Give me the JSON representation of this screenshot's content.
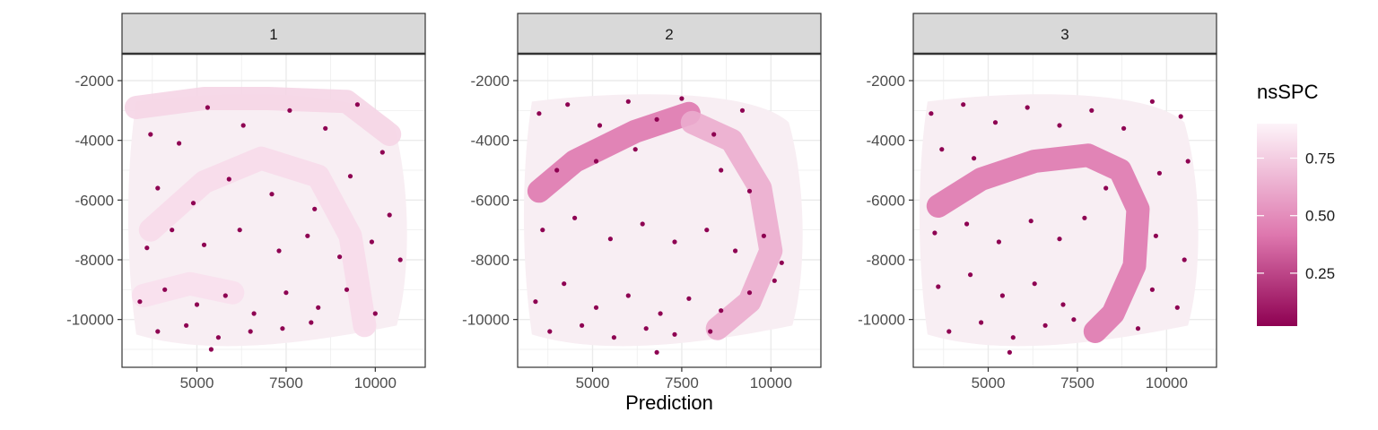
{
  "chart_data": {
    "type": "scatter",
    "title": "",
    "xlabel": "Prediction",
    "ylabel": "",
    "xlim": [
      2900,
      11400
    ],
    "ylim": [
      -11600,
      -1100
    ],
    "x_ticks": [
      5000,
      7500,
      10000
    ],
    "y_ticks": [
      -2000,
      -4000,
      -6000,
      -8000,
      -10000
    ],
    "x_tick_labels": [
      "5000",
      "7500",
      "10000"
    ],
    "y_tick_labels": [
      "-2000",
      "-4000",
      "-6000",
      "-8000",
      "-10000"
    ],
    "grid": true,
    "legend": {
      "title": "nsSPC",
      "position": "right",
      "ticks": [
        0.75,
        0.5,
        0.25
      ],
      "tick_labels": [
        "0.75",
        "0.50",
        "0.25"
      ],
      "range": [
        0.02,
        0.9
      ],
      "color_low": "#8e0152",
      "color_mid": "#de77ae",
      "color_high": "#fdf4f9"
    },
    "panels": [
      {
        "label": "1",
        "bands": [
          {
            "path": [
              [
                3300,
                -2900
              ],
              [
                5200,
                -2600
              ],
              [
                7000,
                -2600
              ],
              [
                9200,
                -2700
              ],
              [
                10400,
                -3800
              ]
            ],
            "value": 0.78
          },
          {
            "path": [
              [
                3700,
                -7000
              ],
              [
                5200,
                -5400
              ],
              [
                6800,
                -4600
              ],
              [
                8400,
                -5200
              ],
              [
                9300,
                -7200
              ],
              [
                9700,
                -10200
              ]
            ],
            "value": 0.8
          },
          {
            "path": [
              [
                3500,
                -9200
              ],
              [
                4800,
                -8800
              ],
              [
                6000,
                -9100
              ]
            ],
            "value": 0.82
          }
        ],
        "spots": [
          [
            3700,
            -3800
          ],
          [
            4500,
            -4100
          ],
          [
            5300,
            -2900
          ],
          [
            6300,
            -3500
          ],
          [
            7600,
            -3000
          ],
          [
            8600,
            -3600
          ],
          [
            9500,
            -2800
          ],
          [
            10200,
            -4400
          ],
          [
            3900,
            -5600
          ],
          [
            4900,
            -6100
          ],
          [
            5900,
            -5300
          ],
          [
            7100,
            -5800
          ],
          [
            8300,
            -6300
          ],
          [
            9300,
            -5200
          ],
          [
            10400,
            -6500
          ],
          [
            3600,
            -7600
          ],
          [
            4300,
            -7000
          ],
          [
            5200,
            -7500
          ],
          [
            6200,
            -7000
          ],
          [
            7300,
            -7700
          ],
          [
            8100,
            -7200
          ],
          [
            9000,
            -7900
          ],
          [
            9900,
            -7400
          ],
          [
            10700,
            -8000
          ],
          [
            3400,
            -9400
          ],
          [
            4100,
            -9000
          ],
          [
            5000,
            -9500
          ],
          [
            5800,
            -9200
          ],
          [
            6600,
            -9800
          ],
          [
            7500,
            -9100
          ],
          [
            8400,
            -9600
          ],
          [
            9200,
            -9000
          ],
          [
            10000,
            -9800
          ],
          [
            3900,
            -10400
          ],
          [
            4700,
            -10200
          ],
          [
            5600,
            -10600
          ],
          [
            6500,
            -10400
          ],
          [
            7400,
            -10300
          ],
          [
            8200,
            -10100
          ],
          [
            5400,
            -11000
          ]
        ]
      },
      {
        "label": "2",
        "bands": [
          {
            "path": [
              [
                3500,
                -5700
              ],
              [
                4500,
                -4700
              ],
              [
                6200,
                -3700
              ],
              [
                7700,
                -3100
              ]
            ],
            "value": 0.42
          },
          {
            "path": [
              [
                7800,
                -3400
              ],
              [
                8900,
                -4000
              ],
              [
                9700,
                -5600
              ],
              [
                10000,
                -7700
              ],
              [
                9400,
                -9400
              ],
              [
                8500,
                -10300
              ]
            ],
            "value": 0.62
          }
        ],
        "spots": [
          [
            3500,
            -3100
          ],
          [
            4300,
            -2800
          ],
          [
            5200,
            -3500
          ],
          [
            6000,
            -2700
          ],
          [
            6800,
            -3300
          ],
          [
            7500,
            -2600
          ],
          [
            8400,
            -3800
          ],
          [
            9200,
            -3000
          ],
          [
            4000,
            -5000
          ],
          [
            5100,
            -4700
          ],
          [
            6200,
            -4300
          ],
          [
            8600,
            -5000
          ],
          [
            9400,
            -5700
          ],
          [
            3600,
            -7000
          ],
          [
            4500,
            -6600
          ],
          [
            5500,
            -7300
          ],
          [
            6400,
            -6800
          ],
          [
            7300,
            -7400
          ],
          [
            8200,
            -7000
          ],
          [
            9000,
            -7700
          ],
          [
            9800,
            -7200
          ],
          [
            10300,
            -8100
          ],
          [
            3400,
            -9400
          ],
          [
            4200,
            -8800
          ],
          [
            5100,
            -9600
          ],
          [
            6000,
            -9200
          ],
          [
            6900,
            -9800
          ],
          [
            7700,
            -9300
          ],
          [
            8600,
            -9700
          ],
          [
            9400,
            -9100
          ],
          [
            3800,
            -10400
          ],
          [
            4700,
            -10200
          ],
          [
            5600,
            -10600
          ],
          [
            6500,
            -10300
          ],
          [
            7300,
            -10500
          ],
          [
            8300,
            -10400
          ],
          [
            6800,
            -11100
          ],
          [
            10100,
            -8700
          ]
        ]
      },
      {
        "label": "3",
        "bands": [
          {
            "path": [
              [
                3600,
                -6200
              ],
              [
                4800,
                -5300
              ],
              [
                6300,
                -4700
              ],
              [
                7800,
                -4500
              ],
              [
                8700,
                -5000
              ],
              [
                9200,
                -6300
              ],
              [
                9100,
                -8200
              ],
              [
                8500,
                -9800
              ],
              [
                8000,
                -10400
              ]
            ],
            "value": 0.42
          }
        ],
        "spots": [
          [
            3400,
            -3100
          ],
          [
            4300,
            -2800
          ],
          [
            5200,
            -3400
          ],
          [
            6100,
            -2900
          ],
          [
            7000,
            -3500
          ],
          [
            7900,
            -3000
          ],
          [
            8800,
            -3600
          ],
          [
            9600,
            -2700
          ],
          [
            10400,
            -3200
          ],
          [
            3700,
            -4300
          ],
          [
            4600,
            -4600
          ],
          [
            8300,
            -5600
          ],
          [
            9800,
            -5100
          ],
          [
            10600,
            -4700
          ],
          [
            3500,
            -7100
          ],
          [
            4400,
            -6800
          ],
          [
            5300,
            -7400
          ],
          [
            6200,
            -6700
          ],
          [
            7000,
            -7300
          ],
          [
            7700,
            -6600
          ],
          [
            9700,
            -7200
          ],
          [
            10500,
            -8000
          ],
          [
            3600,
            -8900
          ],
          [
            4500,
            -8500
          ],
          [
            5400,
            -9200
          ],
          [
            6300,
            -8800
          ],
          [
            7100,
            -9500
          ],
          [
            9600,
            -9000
          ],
          [
            10300,
            -9600
          ],
          [
            3900,
            -10400
          ],
          [
            4800,
            -10100
          ],
          [
            5700,
            -10600
          ],
          [
            6600,
            -10200
          ],
          [
            7400,
            -10000
          ],
          [
            9200,
            -10300
          ],
          [
            5600,
            -11100
          ]
        ]
      }
    ]
  }
}
